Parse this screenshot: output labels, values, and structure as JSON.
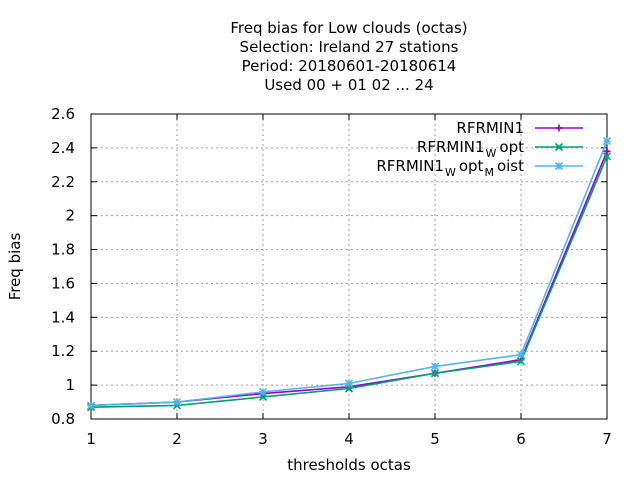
{
  "chart_data": {
    "type": "line",
    "title_lines": [
      "Freq bias  for Low clouds (octas)",
      "Selection: Ireland      27 stations",
      "Period: 20180601-20180614",
      "Used  00 + 01 02 ... 24"
    ],
    "xlabel": "thresholds octas",
    "ylabel": "Freq bias",
    "xlim": [
      1,
      7
    ],
    "ylim": [
      0.8,
      2.6
    ],
    "x_ticks": [
      "1",
      "2",
      "3",
      "4",
      "5",
      "6",
      "7"
    ],
    "y_ticks": [
      "0.8",
      "1",
      "1.2",
      "1.4",
      "1.6",
      "1.8",
      "2",
      "2.2",
      "2.4",
      "2.6"
    ],
    "grid": true,
    "legend_position": "top-right",
    "x": [
      1,
      2,
      3,
      4,
      5,
      6,
      7
    ],
    "series": [
      {
        "name": "RFRMIN1",
        "legend_main": "RFRMIN1",
        "legend_parts": [],
        "color": "#9400d3",
        "marker": "plus",
        "values": [
          0.88,
          0.9,
          0.95,
          0.99,
          1.07,
          1.15,
          2.38
        ]
      },
      {
        "name": "RFRMIN1_Wopt",
        "legend_main": "RFRMIN1",
        "legend_parts": [
          [
            "W",
            "sub"
          ],
          [
            "opt",
            "normal"
          ]
        ],
        "color": "#009e73",
        "marker": "cross",
        "values": [
          0.87,
          0.88,
          0.93,
          0.98,
          1.07,
          1.14,
          2.35
        ]
      },
      {
        "name": "RFRMIN1_Wopt_Moist",
        "legend_main": "RFRMIN1",
        "legend_parts": [
          [
            "W",
            "sub"
          ],
          [
            "opt",
            "normal"
          ],
          [
            "M",
            "sub"
          ],
          [
            "oist",
            "normal"
          ]
        ],
        "color": "#56b4e9",
        "marker": "star",
        "values": [
          0.88,
          0.9,
          0.96,
          1.01,
          1.11,
          1.18,
          2.44
        ]
      }
    ]
  }
}
